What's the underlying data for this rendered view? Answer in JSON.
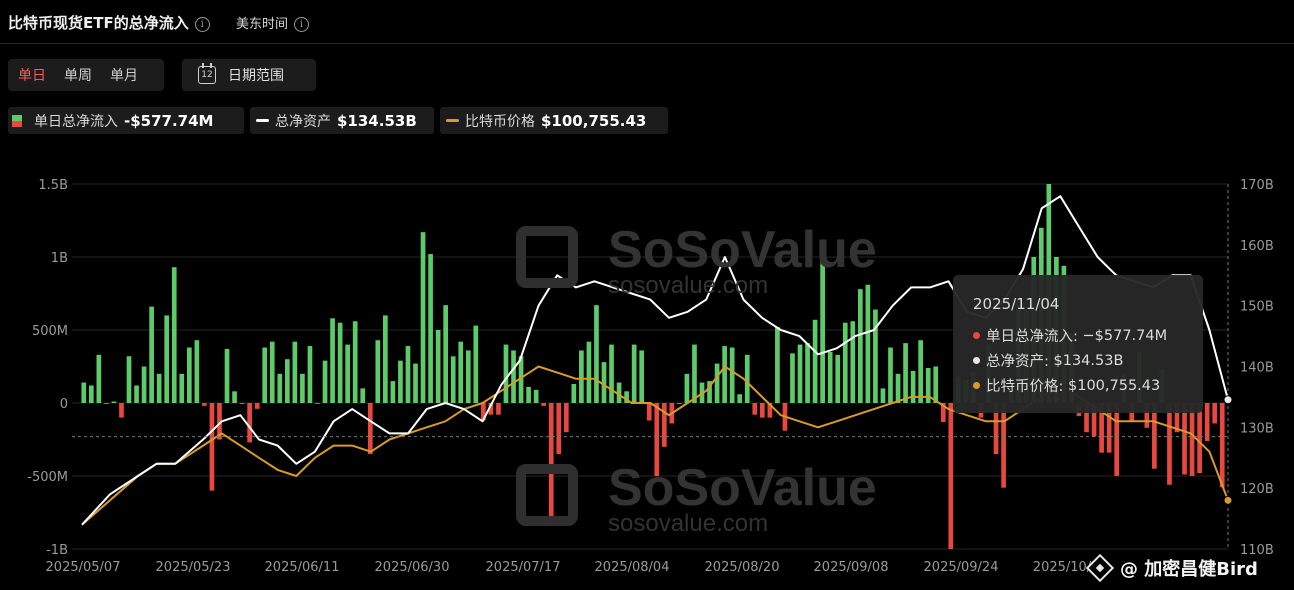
{
  "header": {
    "title": "比特币现货ETF的总净流入",
    "timezone": "美东时间"
  },
  "period_tabs": [
    "单日",
    "单周",
    "单月"
  ],
  "date_range": {
    "label": "日期范围",
    "icon_day": "12"
  },
  "legend": [
    {
      "label": "单日总净流入",
      "value": "-$577.74M"
    },
    {
      "label": "总净资产",
      "value": "$134.53B"
    },
    {
      "label": "比特币价格",
      "value": "$100,755.43"
    }
  ],
  "watermark": {
    "brand": "SoSoValue",
    "url": "sosovalue.com"
  },
  "tooltip": {
    "date": "2025/11/04",
    "rows": [
      {
        "label": "单日总净流入:",
        "value": "−$577.74M"
      },
      {
        "label": "总净资产:",
        "value": "$134.53B"
      },
      {
        "label": "比特币价格:",
        "value": "$100,755.43"
      }
    ]
  },
  "footer_brand": "@ 加密昌健Bird",
  "colors": {
    "inflow": "#5ecb6a",
    "outflow": "#e8483f",
    "assets": "#ffffff",
    "price": "#d89b2a",
    "tooltip_dot_assets": "#e8e8e8"
  },
  "chart_data": {
    "type": "bar+line",
    "x_tick_labels": [
      "2025/05/07",
      "2025/05/23",
      "2025/06/11",
      "2025/06/30",
      "2025/07/17",
      "2025/08/04",
      "2025/08/20",
      "2025/09/08",
      "2025/09/24",
      "2025/10/"
    ],
    "y_left": {
      "ticks": [
        "1.5B",
        "1B",
        "500M",
        "0",
        "-500M",
        "-1B"
      ],
      "range_millions": [
        -1000,
        1500
      ]
    },
    "y_right": {
      "ticks": [
        "170B",
        "160B",
        "150B",
        "140B",
        "130B",
        "120B",
        "110B"
      ],
      "range_billions": [
        110,
        170
      ]
    },
    "series": [
      {
        "name": "单日总净流入",
        "kind": "bar",
        "unit": "M",
        "values": [
          140,
          120,
          330,
          0,
          10,
          -100,
          320,
          120,
          250,
          660,
          200,
          600,
          930,
          200,
          380,
          430,
          -20,
          -600,
          -250,
          370,
          80,
          0,
          -270,
          -40,
          380,
          420,
          200,
          300,
          420,
          200,
          390,
          0,
          290,
          580,
          550,
          400,
          560,
          100,
          -350,
          430,
          600,
          150,
          290,
          390,
          270,
          1170,
          1020,
          500,
          670,
          320,
          420,
          360,
          530,
          -120,
          -80,
          -80,
          400,
          360,
          320,
          110,
          90,
          -20,
          -800,
          -350,
          -200,
          130,
          360,
          420,
          670,
          280,
          400,
          140,
          80,
          400,
          360,
          -120,
          -500,
          -300,
          -140,
          0,
          200,
          400,
          140,
          150,
          270,
          390,
          380,
          60,
          330,
          -80,
          -100,
          -100,
          520,
          -190,
          340,
          400,
          410,
          570,
          1040,
          350,
          330,
          550,
          560,
          780,
          810,
          640,
          100,
          380,
          200,
          410,
          220,
          430,
          240,
          250,
          -130,
          -1300,
          180,
          160,
          210,
          -100,
          400,
          -350,
          -580,
          100,
          720,
          640,
          1000,
          1200,
          1700,
          1000,
          940,
          480,
          -90,
          -200,
          -230,
          -340,
          -340,
          -500,
          200,
          -130,
          350,
          -170,
          -450,
          230,
          -560,
          -200,
          -490,
          -500,
          -480,
          -260,
          -140,
          -577.74
        ]
      },
      {
        "name": "总净资产",
        "kind": "line",
        "unit": "B",
        "points": [
          [
            0,
            114
          ],
          [
            3,
            119
          ],
          [
            6,
            122
          ],
          [
            8,
            124
          ],
          [
            10,
            124
          ],
          [
            13,
            128
          ],
          [
            15,
            131
          ],
          [
            17,
            132
          ],
          [
            19,
            128
          ],
          [
            21,
            127
          ],
          [
            23,
            124
          ],
          [
            25,
            126
          ],
          [
            27,
            131
          ],
          [
            29,
            133
          ],
          [
            31,
            131
          ],
          [
            33,
            129
          ],
          [
            35,
            129
          ],
          [
            37,
            133
          ],
          [
            39,
            134
          ],
          [
            41,
            133
          ],
          [
            43,
            131
          ],
          [
            45,
            137
          ],
          [
            47,
            141
          ],
          [
            49,
            150
          ],
          [
            51,
            155
          ],
          [
            53,
            153
          ],
          [
            55,
            154
          ],
          [
            57,
            153
          ],
          [
            59,
            152
          ],
          [
            61,
            151
          ],
          [
            63,
            148
          ],
          [
            65,
            149
          ],
          [
            67,
            151
          ],
          [
            69,
            158
          ],
          [
            71,
            151
          ],
          [
            73,
            148
          ],
          [
            75,
            146
          ],
          [
            77,
            145
          ],
          [
            79,
            142
          ],
          [
            81,
            143
          ],
          [
            83,
            145
          ],
          [
            85,
            146
          ],
          [
            87,
            150
          ],
          [
            89,
            153
          ],
          [
            91,
            153
          ],
          [
            93,
            154
          ],
          [
            95,
            149
          ],
          [
            97,
            148
          ],
          [
            99,
            151
          ],
          [
            101,
            156
          ],
          [
            103,
            166
          ],
          [
            105,
            168
          ],
          [
            107,
            163
          ],
          [
            109,
            158
          ],
          [
            111,
            155
          ],
          [
            113,
            154
          ],
          [
            115,
            153
          ],
          [
            117,
            155
          ],
          [
            119,
            155
          ],
          [
            121,
            146
          ],
          [
            123,
            134.53
          ]
        ]
      },
      {
        "name": "比特币价格",
        "kind": "line",
        "unit": "USD",
        "points": [
          [
            0,
            114
          ],
          [
            3,
            118
          ],
          [
            6,
            122
          ],
          [
            8,
            124
          ],
          [
            10,
            124
          ],
          [
            13,
            127
          ],
          [
            15,
            129
          ],
          [
            17,
            127
          ],
          [
            19,
            125
          ],
          [
            21,
            123
          ],
          [
            23,
            122
          ],
          [
            25,
            125
          ],
          [
            27,
            127
          ],
          [
            29,
            127
          ],
          [
            31,
            126
          ],
          [
            33,
            128
          ],
          [
            35,
            129
          ],
          [
            37,
            130
          ],
          [
            39,
            131
          ],
          [
            41,
            133
          ],
          [
            43,
            134
          ],
          [
            45,
            136
          ],
          [
            47,
            138
          ],
          [
            49,
            140
          ],
          [
            51,
            139
          ],
          [
            53,
            138
          ],
          [
            55,
            138
          ],
          [
            57,
            136
          ],
          [
            59,
            134
          ],
          [
            61,
            134
          ],
          [
            63,
            132
          ],
          [
            65,
            134
          ],
          [
            67,
            136
          ],
          [
            69,
            140
          ],
          [
            71,
            138
          ],
          [
            73,
            135
          ],
          [
            75,
            132
          ],
          [
            77,
            131
          ],
          [
            79,
            130
          ],
          [
            81,
            131
          ],
          [
            83,
            132
          ],
          [
            85,
            133
          ],
          [
            87,
            134
          ],
          [
            89,
            135
          ],
          [
            91,
            135
          ],
          [
            93,
            133
          ],
          [
            95,
            132
          ],
          [
            97,
            131
          ],
          [
            99,
            131
          ],
          [
            101,
            133
          ],
          [
            103,
            135
          ],
          [
            105,
            137
          ],
          [
            107,
            135
          ],
          [
            109,
            133
          ],
          [
            111,
            131
          ],
          [
            113,
            131
          ],
          [
            115,
            131
          ],
          [
            117,
            130
          ],
          [
            119,
            129
          ],
          [
            121,
            126
          ],
          [
            123,
            118
          ]
        ]
      }
    ]
  }
}
